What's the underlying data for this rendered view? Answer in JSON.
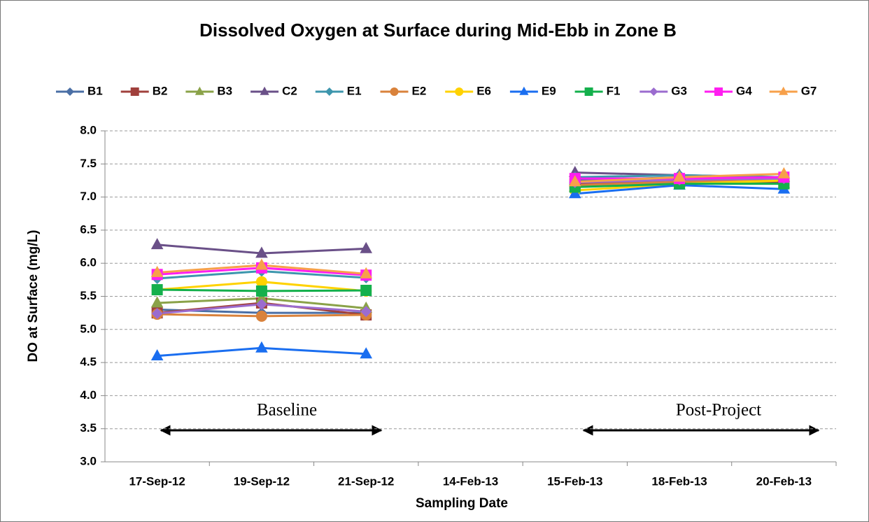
{
  "chart_data": {
    "type": "line",
    "title": "Dissolved Oxygen at Surface during Mid-Ebb in Zone B",
    "x_label": "Sampling Date",
    "y_label": "DO at Surface (mg/L)",
    "categories": [
      "17-Sep-12",
      "19-Sep-12",
      "21-Sep-12",
      "14-Feb-13",
      "15-Feb-13",
      "18-Feb-13",
      "20-Feb-13"
    ],
    "ylim": [
      3,
      8
    ],
    "yticks": [
      {
        "value": 3,
        "label": "3.0"
      },
      {
        "value": 3.5,
        "label": "3.5"
      },
      {
        "value": 4,
        "label": "4.0"
      },
      {
        "value": 4.5,
        "label": "4.5"
      },
      {
        "value": 5,
        "label": "5.0"
      },
      {
        "value": 5.5,
        "label": "5.5"
      },
      {
        "value": 6,
        "label": "6.0"
      },
      {
        "value": 6.5,
        "label": "6.5"
      },
      {
        "value": 7,
        "label": "7.0"
      },
      {
        "value": 7.5,
        "label": "7.5"
      },
      {
        "value": 8,
        "label": "8.0"
      }
    ],
    "grid": true,
    "legend": "top",
    "annotations": [
      "Baseline",
      "Post-Project"
    ],
    "series": [
      {
        "name": "B1",
        "color": "#4a6fa5",
        "marker": "diamond",
        "values": [
          5.3,
          5.25,
          5.25,
          null,
          7.25,
          7.3,
          7.3
        ]
      },
      {
        "name": "B2",
        "color": "#a0403c",
        "marker": "square",
        "values": [
          5.25,
          5.4,
          5.22,
          null,
          7.2,
          7.25,
          7.22
        ]
      },
      {
        "name": "B3",
        "color": "#8aa248",
        "marker": "triangle",
        "values": [
          5.4,
          5.47,
          5.32,
          null,
          7.15,
          7.22,
          7.2
        ]
      },
      {
        "name": "C2",
        "color": "#6a5088",
        "marker": "triangle",
        "values": [
          6.28,
          6.15,
          6.22,
          null,
          7.37,
          7.33,
          7.3
        ]
      },
      {
        "name": "E1",
        "color": "#3d96ad",
        "marker": "diamond",
        "values": [
          5.77,
          5.88,
          5.78,
          null,
          7.3,
          7.33,
          7.3
        ]
      },
      {
        "name": "E2",
        "color": "#d9823b",
        "marker": "circle",
        "values": [
          5.23,
          5.2,
          5.22,
          null,
          7.18,
          7.23,
          7.25
        ]
      },
      {
        "name": "E6",
        "color": "#ffd200",
        "marker": "circle",
        "values": [
          5.6,
          5.72,
          5.58,
          null,
          7.1,
          7.2,
          7.25
        ]
      },
      {
        "name": "E9",
        "color": "#1a6ef0",
        "marker": "triangle",
        "values": [
          4.6,
          4.72,
          4.63,
          null,
          7.05,
          7.18,
          7.12
        ]
      },
      {
        "name": "F1",
        "color": "#14b04c",
        "marker": "square",
        "values": [
          5.6,
          5.58,
          5.59,
          null,
          7.15,
          7.2,
          7.2
        ]
      },
      {
        "name": "G3",
        "color": "#9b6ccf",
        "marker": "diamond",
        "values": [
          5.24,
          5.38,
          5.27,
          null,
          7.22,
          7.26,
          7.28
        ]
      },
      {
        "name": "G4",
        "color": "#ff1ef0",
        "marker": "square",
        "values": [
          5.83,
          5.93,
          5.82,
          null,
          7.28,
          7.28,
          7.3
        ]
      },
      {
        "name": "G7",
        "color": "#f7a04a",
        "marker": "triangle",
        "values": [
          5.86,
          5.97,
          5.84,
          null,
          7.23,
          7.3,
          7.35
        ]
      }
    ]
  }
}
